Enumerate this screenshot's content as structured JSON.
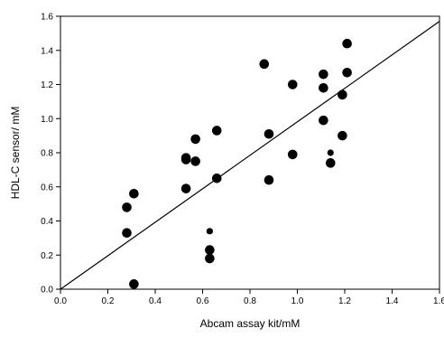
{
  "chart_data": {
    "type": "scatter",
    "xlabel": "Abcam assay kit/mM",
    "ylabel": "HDL-C sensor/ mM",
    "xlim": [
      0.0,
      1.6
    ],
    "ylim": [
      0.0,
      1.6
    ],
    "x_ticks": [
      "0.0",
      "0.2",
      "0.4",
      "0.6",
      "0.8",
      "1.0",
      "1.2",
      "1.4",
      "1.6"
    ],
    "y_ticks": [
      "0.0",
      "0.2",
      "0.4",
      "0.6",
      "0.8",
      "1.0",
      "1.2",
      "1.4",
      "1.6"
    ],
    "grid": false,
    "marker_color": "#000000",
    "points": [
      {
        "x": 0.28,
        "y": 0.48
      },
      {
        "x": 0.28,
        "y": 0.33
      },
      {
        "x": 0.31,
        "y": 0.56
      },
      {
        "x": 0.31,
        "y": 0.03
      },
      {
        "x": 0.53,
        "y": 0.77
      },
      {
        "x": 0.53,
        "y": 0.76
      },
      {
        "x": 0.53,
        "y": 0.59
      },
      {
        "x": 0.57,
        "y": 0.88
      },
      {
        "x": 0.57,
        "y": 0.75
      },
      {
        "x": 0.63,
        "y": 0.34,
        "small": true
      },
      {
        "x": 0.63,
        "y": 0.23
      },
      {
        "x": 0.63,
        "y": 0.18
      },
      {
        "x": 0.66,
        "y": 0.93
      },
      {
        "x": 0.66,
        "y": 0.65
      },
      {
        "x": 0.86,
        "y": 1.32
      },
      {
        "x": 0.88,
        "y": 0.91
      },
      {
        "x": 0.88,
        "y": 0.64
      },
      {
        "x": 0.98,
        "y": 1.2
      },
      {
        "x": 0.98,
        "y": 0.79
      },
      {
        "x": 1.11,
        "y": 1.26
      },
      {
        "x": 1.11,
        "y": 1.18
      },
      {
        "x": 1.11,
        "y": 0.99
      },
      {
        "x": 1.14,
        "y": 0.8,
        "small": true
      },
      {
        "x": 1.14,
        "y": 0.74
      },
      {
        "x": 1.19,
        "y": 1.14
      },
      {
        "x": 1.19,
        "y": 0.9
      },
      {
        "x": 1.21,
        "y": 1.44
      },
      {
        "x": 1.21,
        "y": 1.27
      }
    ],
    "fit_line": {
      "x": [
        0.0,
        1.6
      ],
      "y": [
        0.0,
        1.57
      ]
    }
  }
}
